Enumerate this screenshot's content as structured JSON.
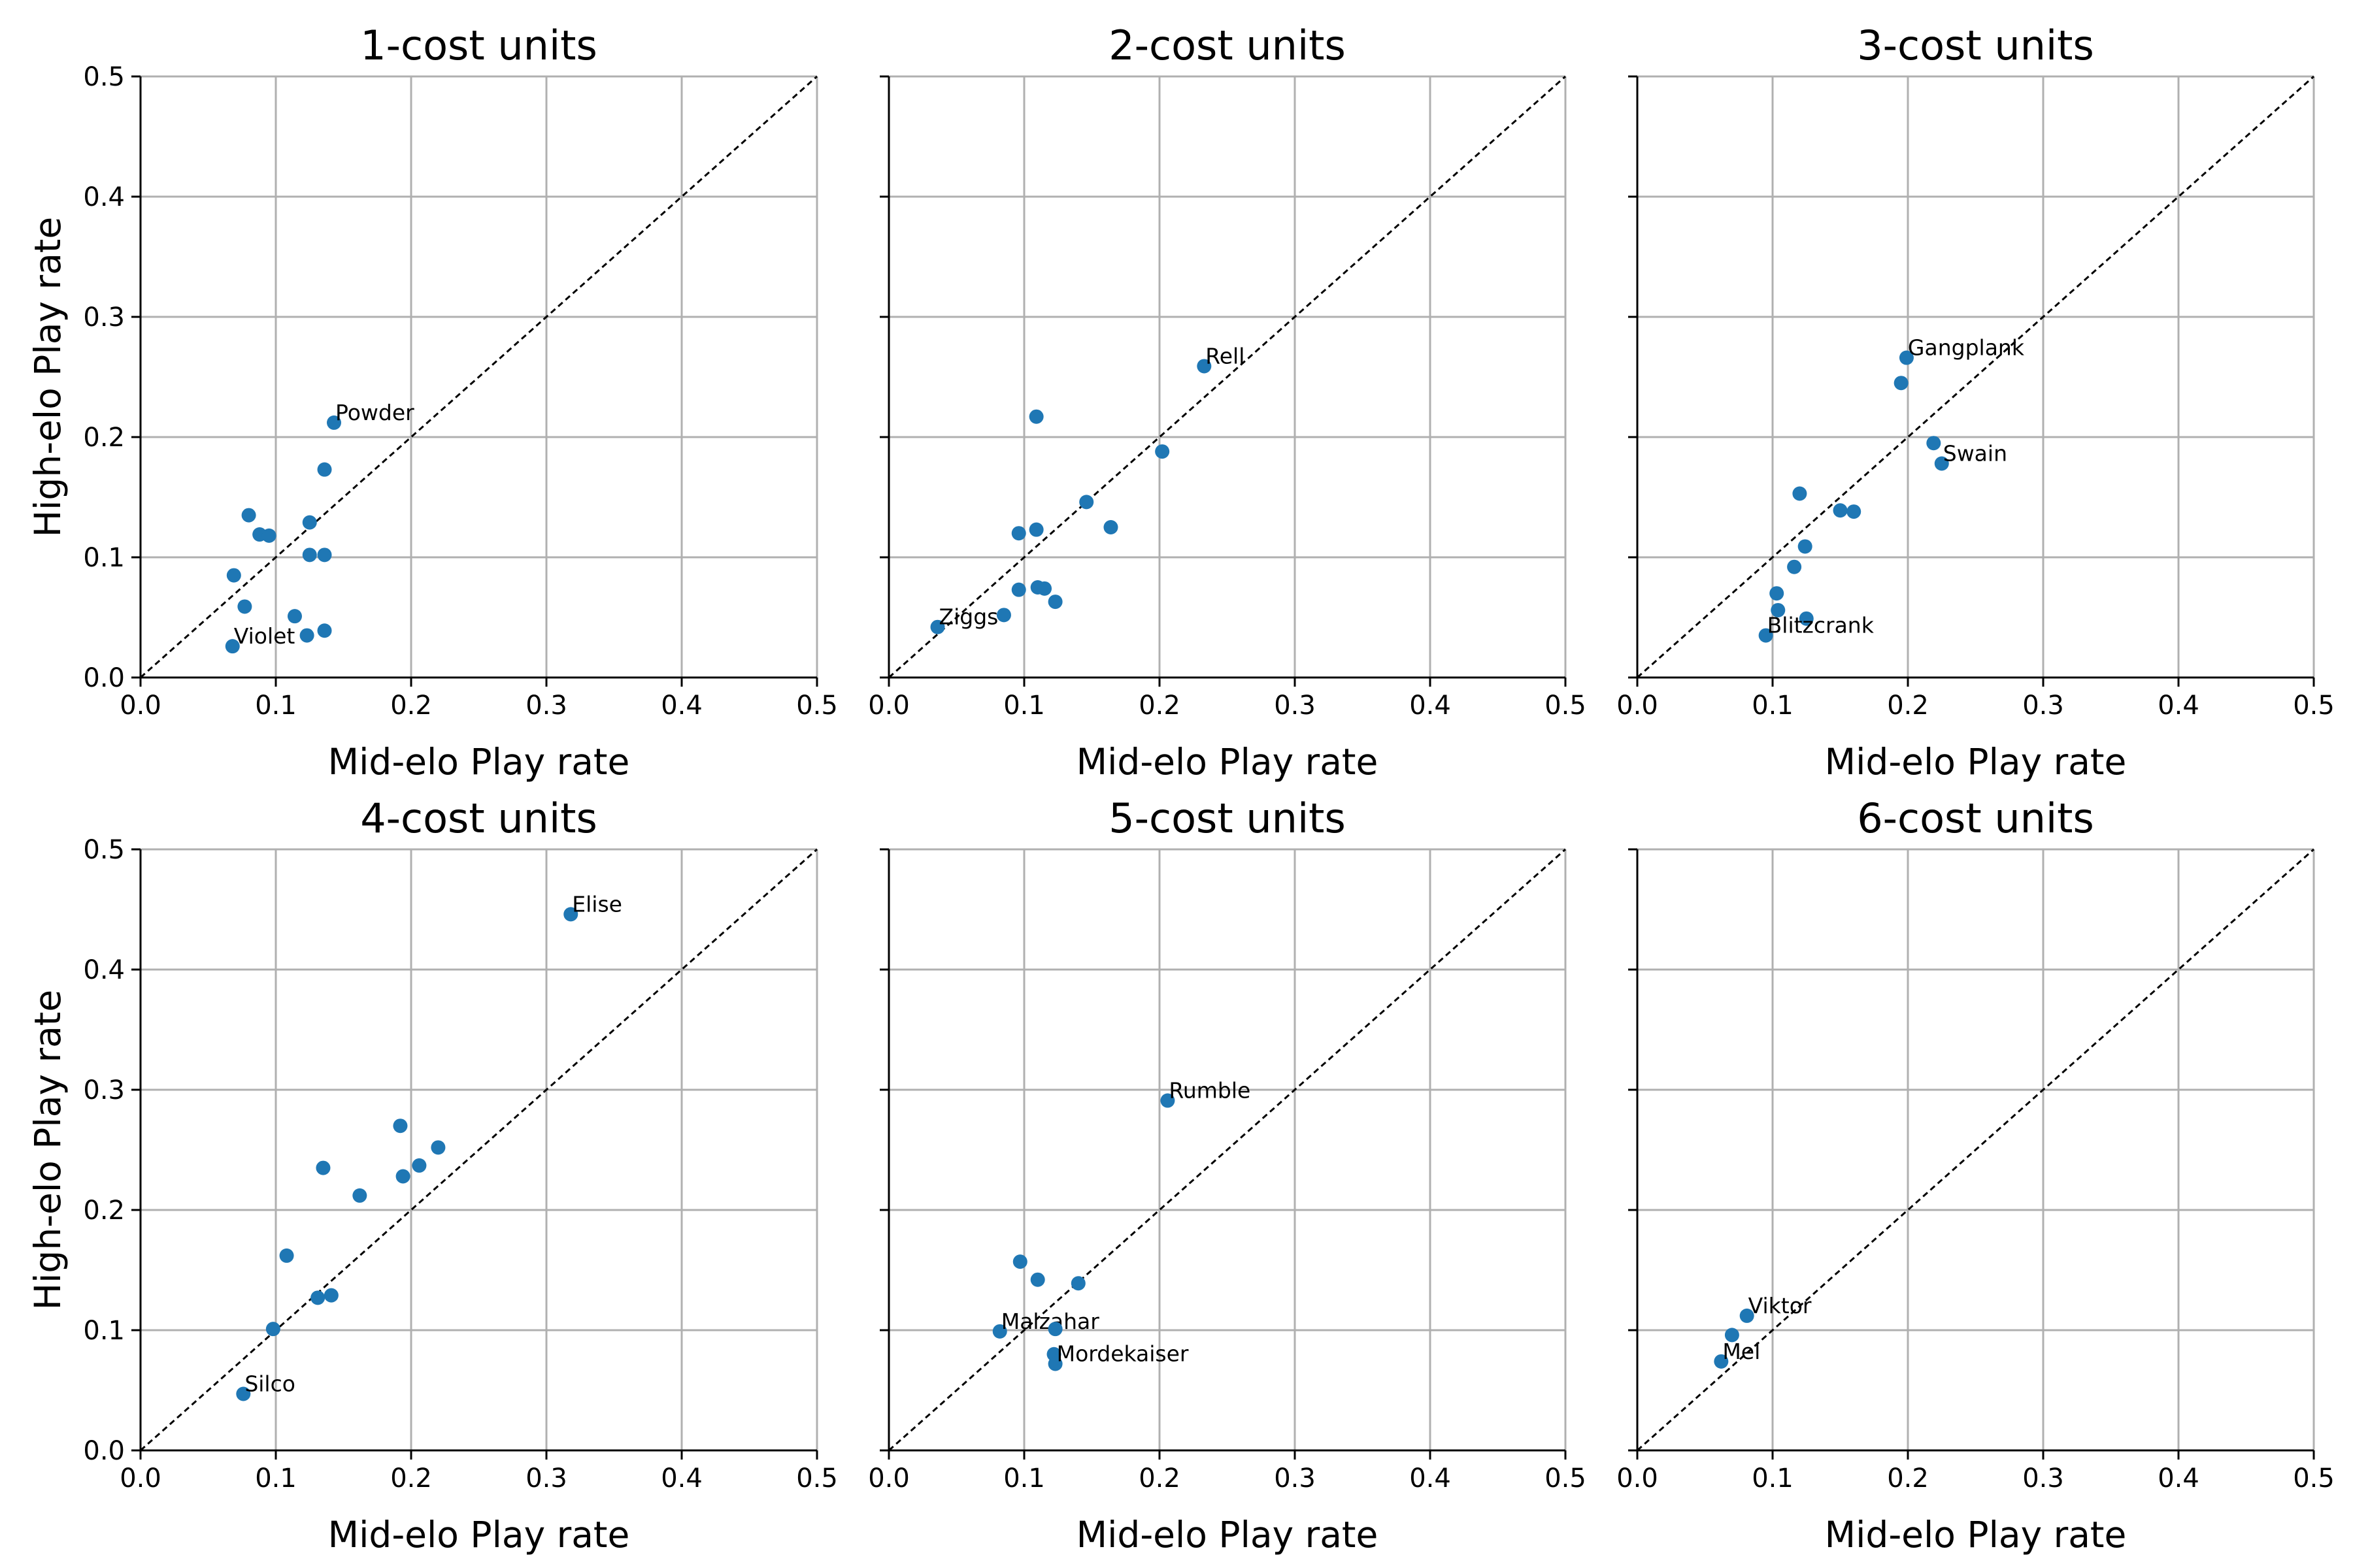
{
  "colors": {
    "point": "#1f77b4",
    "grid": "#b0b0b0",
    "diagonal": "#000000"
  },
  "chart_data": [
    {
      "type": "scatter",
      "title": "1-cost units",
      "xlabel": "Mid-elo Play rate",
      "ylabel": "High-elo Play rate",
      "xlim": [
        0,
        0.5
      ],
      "ylim": [
        0,
        0.5
      ],
      "x_ticks": [
        "0.0",
        "0.1",
        "0.2",
        "0.3",
        "0.4",
        "0.5"
      ],
      "y_ticks": [
        "0.0",
        "0.1",
        "0.2",
        "0.3",
        "0.4",
        "0.5"
      ],
      "grid": true,
      "reference_line": "y = x",
      "points": [
        {
          "x": 0.143,
          "y": 0.212,
          "label": "Powder"
        },
        {
          "x": 0.136,
          "y": 0.173
        },
        {
          "x": 0.08,
          "y": 0.135
        },
        {
          "x": 0.125,
          "y": 0.129
        },
        {
          "x": 0.088,
          "y": 0.119
        },
        {
          "x": 0.095,
          "y": 0.118
        },
        {
          "x": 0.125,
          "y": 0.102
        },
        {
          "x": 0.136,
          "y": 0.102
        },
        {
          "x": 0.069,
          "y": 0.085
        },
        {
          "x": 0.077,
          "y": 0.059
        },
        {
          "x": 0.114,
          "y": 0.051
        },
        {
          "x": 0.136,
          "y": 0.039
        },
        {
          "x": 0.123,
          "y": 0.035
        },
        {
          "x": 0.068,
          "y": 0.026,
          "label": "Violet"
        }
      ]
    },
    {
      "type": "scatter",
      "title": "2-cost units",
      "xlabel": "Mid-elo Play rate",
      "ylabel": "",
      "xlim": [
        0,
        0.5
      ],
      "ylim": [
        0,
        0.5
      ],
      "x_ticks": [
        "0.0",
        "0.1",
        "0.2",
        "0.3",
        "0.4",
        "0.5"
      ],
      "y_ticks": [],
      "grid": true,
      "reference_line": "y = x",
      "points": [
        {
          "x": 0.233,
          "y": 0.259,
          "label": "Rell"
        },
        {
          "x": 0.109,
          "y": 0.217
        },
        {
          "x": 0.202,
          "y": 0.188
        },
        {
          "x": 0.146,
          "y": 0.146
        },
        {
          "x": 0.164,
          "y": 0.125
        },
        {
          "x": 0.109,
          "y": 0.123
        },
        {
          "x": 0.096,
          "y": 0.12
        },
        {
          "x": 0.096,
          "y": 0.073
        },
        {
          "x": 0.11,
          "y": 0.075
        },
        {
          "x": 0.115,
          "y": 0.074
        },
        {
          "x": 0.123,
          "y": 0.063
        },
        {
          "x": 0.085,
          "y": 0.052
        },
        {
          "x": 0.036,
          "y": 0.042,
          "label": "Ziggs"
        }
      ]
    },
    {
      "type": "scatter",
      "title": "3-cost units",
      "xlabel": "Mid-elo Play rate",
      "ylabel": "",
      "xlim": [
        0,
        0.5
      ],
      "ylim": [
        0,
        0.5
      ],
      "x_ticks": [
        "0.0",
        "0.1",
        "0.2",
        "0.3",
        "0.4",
        "0.5"
      ],
      "y_ticks": [],
      "grid": true,
      "reference_line": "y = x",
      "points": [
        {
          "x": 0.199,
          "y": 0.266,
          "label": "Gangplank"
        },
        {
          "x": 0.195,
          "y": 0.245
        },
        {
          "x": 0.219,
          "y": 0.195
        },
        {
          "x": 0.225,
          "y": 0.178,
          "label": "Swain"
        },
        {
          "x": 0.12,
          "y": 0.153
        },
        {
          "x": 0.15,
          "y": 0.139
        },
        {
          "x": 0.16,
          "y": 0.138
        },
        {
          "x": 0.124,
          "y": 0.109
        },
        {
          "x": 0.116,
          "y": 0.092
        },
        {
          "x": 0.103,
          "y": 0.07
        },
        {
          "x": 0.104,
          "y": 0.056
        },
        {
          "x": 0.125,
          "y": 0.049
        },
        {
          "x": 0.095,
          "y": 0.035,
          "label": "Blitzcrank"
        }
      ]
    },
    {
      "type": "scatter",
      "title": "4-cost units",
      "xlabel": "Mid-elo Play rate",
      "ylabel": "High-elo Play rate",
      "xlim": [
        0,
        0.5
      ],
      "ylim": [
        0,
        0.5
      ],
      "x_ticks": [
        "0.0",
        "0.1",
        "0.2",
        "0.3",
        "0.4",
        "0.5"
      ],
      "y_ticks": [
        "0.0",
        "0.1",
        "0.2",
        "0.3",
        "0.4",
        "0.5"
      ],
      "grid": true,
      "reference_line": "y = x",
      "points": [
        {
          "x": 0.318,
          "y": 0.446,
          "label": "Elise"
        },
        {
          "x": 0.192,
          "y": 0.27
        },
        {
          "x": 0.22,
          "y": 0.252
        },
        {
          "x": 0.206,
          "y": 0.237
        },
        {
          "x": 0.135,
          "y": 0.235
        },
        {
          "x": 0.194,
          "y": 0.228
        },
        {
          "x": 0.162,
          "y": 0.212
        },
        {
          "x": 0.108,
          "y": 0.162
        },
        {
          "x": 0.131,
          "y": 0.127
        },
        {
          "x": 0.141,
          "y": 0.129
        },
        {
          "x": 0.098,
          "y": 0.101
        },
        {
          "x": 0.076,
          "y": 0.047,
          "label": "Silco"
        }
      ]
    },
    {
      "type": "scatter",
      "title": "5-cost units",
      "xlabel": "Mid-elo Play rate",
      "ylabel": "",
      "xlim": [
        0,
        0.5
      ],
      "ylim": [
        0,
        0.5
      ],
      "x_ticks": [
        "0.0",
        "0.1",
        "0.2",
        "0.3",
        "0.4",
        "0.5"
      ],
      "y_ticks": [],
      "grid": true,
      "reference_line": "y = x",
      "points": [
        {
          "x": 0.206,
          "y": 0.291,
          "label": "Rumble"
        },
        {
          "x": 0.097,
          "y": 0.157
        },
        {
          "x": 0.11,
          "y": 0.142
        },
        {
          "x": 0.14,
          "y": 0.139
        },
        {
          "x": 0.082,
          "y": 0.099,
          "label": "Malzahar"
        },
        {
          "x": 0.123,
          "y": 0.101
        },
        {
          "x": 0.122,
          "y": 0.08
        },
        {
          "x": 0.123,
          "y": 0.072,
          "label": "Mordekaiser"
        }
      ]
    },
    {
      "type": "scatter",
      "title": "6-cost units",
      "xlabel": "Mid-elo Play rate",
      "ylabel": "",
      "xlim": [
        0,
        0.5
      ],
      "ylim": [
        0,
        0.5
      ],
      "x_ticks": [
        "0.0",
        "0.1",
        "0.2",
        "0.3",
        "0.4",
        "0.5"
      ],
      "y_ticks": [],
      "grid": true,
      "reference_line": "y = x",
      "points": [
        {
          "x": 0.081,
          "y": 0.112,
          "label": "Viktor"
        },
        {
          "x": 0.07,
          "y": 0.096
        },
        {
          "x": 0.062,
          "y": 0.074,
          "label": "Mel"
        }
      ]
    }
  ]
}
